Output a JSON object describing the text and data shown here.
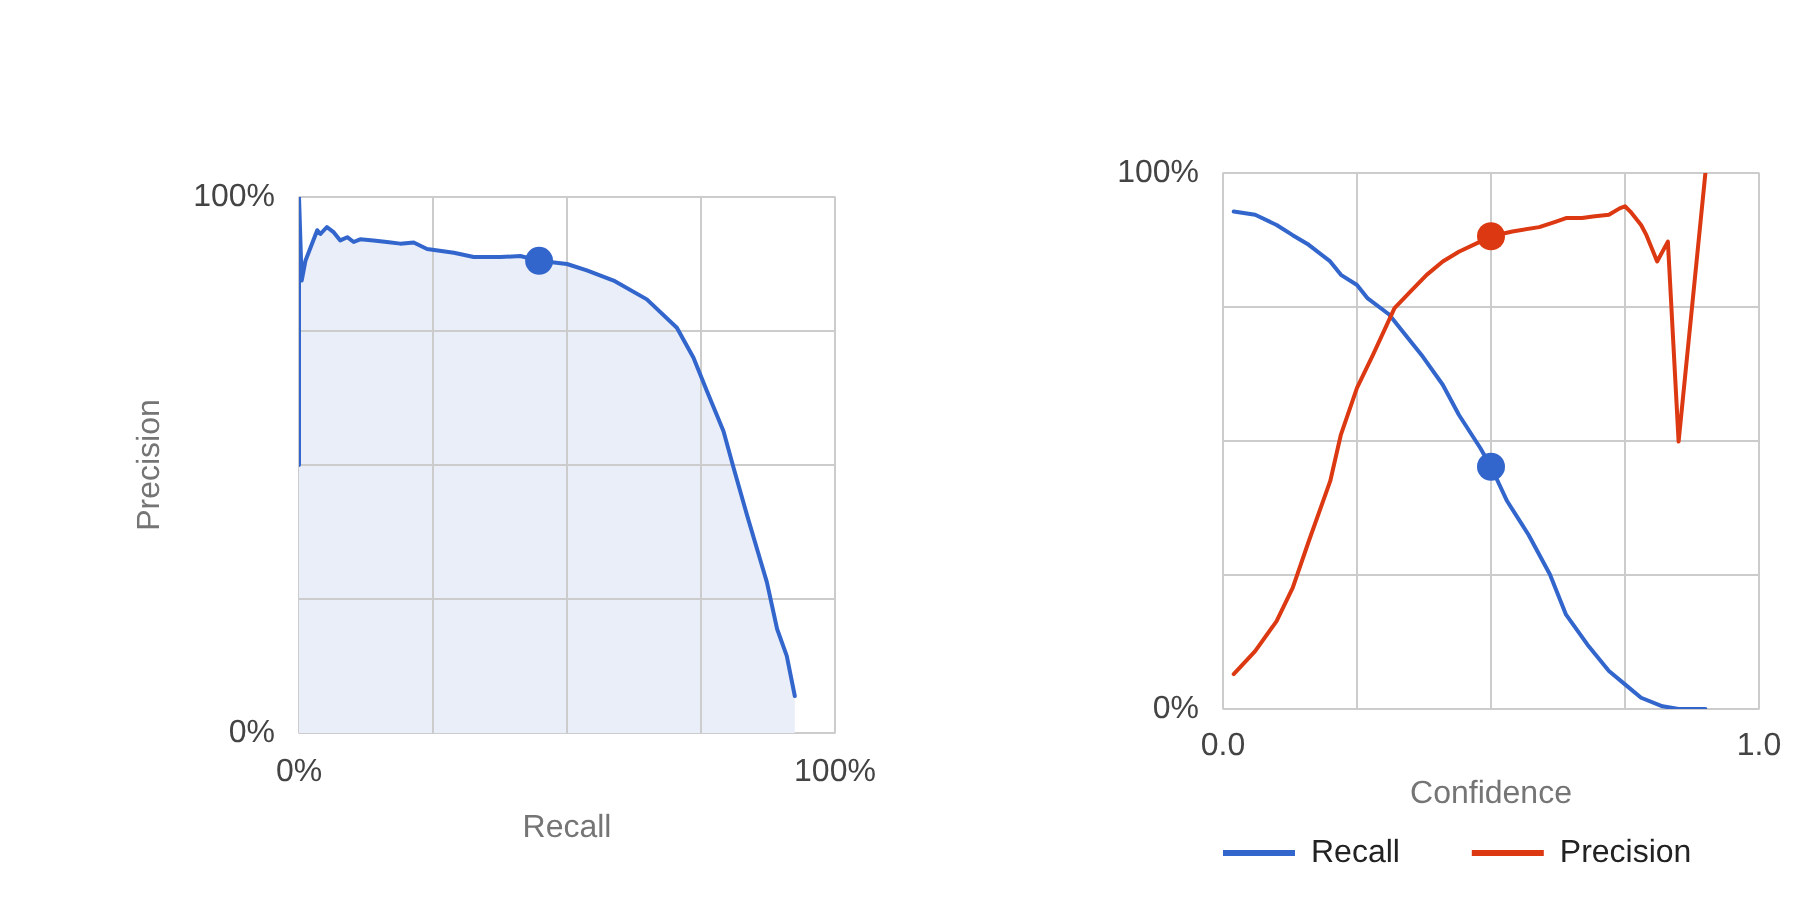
{
  "chart_data": [
    {
      "type": "area",
      "xlabel": "Recall",
      "ylabel": "Precision",
      "xlim": [
        0,
        100
      ],
      "ylim": [
        0,
        100
      ],
      "xticks": [
        {
          "value": 0,
          "label": "0%"
        },
        {
          "value": 25,
          "label": null
        },
        {
          "value": 50,
          "label": null
        },
        {
          "value": 75,
          "label": null
        },
        {
          "value": 100,
          "label": "100%"
        }
      ],
      "yticks": [
        {
          "value": 0,
          "label": "0%"
        },
        {
          "value": 25,
          "label": null
        },
        {
          "value": 50,
          "label": null
        },
        {
          "value": 75,
          "label": null
        },
        {
          "value": 100,
          "label": "100%"
        }
      ],
      "grid": true,
      "series": [
        {
          "color": "#3366cc",
          "x": [
            0,
            0,
            0.5,
            1.2,
            3.4,
            4.0,
            5.2,
            6.5,
            7.7,
            9.0,
            10.2,
            11.4,
            13.9,
            16.4,
            18.9,
            21.4,
            23.9,
            28.9,
            32.6,
            37.6,
            41.3,
            44.8,
            50.0,
            53.7,
            58.7,
            64.9,
            70.5,
            73.6,
            76.1,
            79.2,
            81.1,
            83.6,
            87.3,
            89.2,
            91.0,
            92.5
          ],
          "values": [
            50,
            100,
            84.4,
            88.1,
            93.8,
            93.1,
            94.4,
            93.4,
            91.9,
            92.5,
            91.6,
            92.1,
            91.9,
            91.6,
            91.3,
            91.5,
            90.3,
            89.6,
            88.8,
            88.8,
            89.0,
            88.1,
            87.5,
            86.3,
            84.4,
            80.9,
            75.6,
            70.0,
            63.8,
            56.3,
            49.4,
            40.6,
            28.1,
            19.4,
            14.4,
            6.9
          ]
        },
        {
          "type": "scatter",
          "marker": "circle",
          "color": "#3366cc",
          "x": [
            44.8
          ],
          "values": [
            88.1
          ]
        }
      ]
    },
    {
      "type": "line",
      "xlabel": "Confidence",
      "xlim": [
        0,
        1
      ],
      "ylim": [
        0,
        100
      ],
      "xticks": [
        {
          "value": 0,
          "label": "0.0"
        },
        {
          "value": 0.25,
          "label": null
        },
        {
          "value": 0.5,
          "label": null
        },
        {
          "value": 0.75,
          "label": null
        },
        {
          "value": 1,
          "label": "1.0"
        }
      ],
      "yticks": [
        {
          "value": 0,
          "label": "0%"
        },
        {
          "value": 25,
          "label": null
        },
        {
          "value": 50,
          "label": null
        },
        {
          "value": 75,
          "label": null
        },
        {
          "value": 100,
          "label": "100%"
        }
      ],
      "grid": true,
      "legend": "bottom",
      "series": [
        {
          "name": "Recall",
          "color": "#3366cc",
          "x": [
            0.02,
            0.06,
            0.1,
            0.13,
            0.16,
            0.2,
            0.22,
            0.25,
            0.27,
            0.31,
            0.33,
            0.37,
            0.41,
            0.44,
            0.48,
            0.5,
            0.53,
            0.57,
            0.61,
            0.64,
            0.68,
            0.72,
            0.75,
            0.78,
            0.82,
            0.85,
            0.9
          ],
          "values": [
            92.8,
            92.2,
            90.3,
            88.4,
            86.6,
            83.5,
            81.0,
            79.1,
            76.6,
            73.6,
            71.1,
            66.1,
            60.5,
            54.9,
            48.7,
            45.2,
            38.8,
            32.5,
            25.1,
            17.6,
            12.0,
            7.1,
            4.6,
            2.1,
            0.5,
            0,
            0
          ]
        },
        {
          "name": "Precision",
          "color": "#dc3912",
          "x": [
            0.02,
            0.06,
            0.1,
            0.13,
            0.16,
            0.2,
            0.22,
            0.25,
            0.28,
            0.32,
            0.35,
            0.38,
            0.41,
            0.44,
            0.48,
            0.5,
            0.54,
            0.59,
            0.62,
            0.64,
            0.67,
            0.69,
            0.72,
            0.74,
            0.75,
            0.76,
            0.78,
            0.79,
            0.81,
            0.83,
            0.85,
            0.9
          ],
          "values": [
            6.5,
            10.8,
            16.4,
            22.6,
            31.3,
            42.5,
            51.2,
            59.9,
            66.1,
            74.8,
            77.9,
            81.0,
            83.5,
            85.3,
            87.2,
            88.2,
            89.1,
            89.9,
            90.9,
            91.6,
            91.6,
            91.9,
            92.2,
            93.4,
            93.8,
            92.8,
            90.3,
            88.4,
            83.5,
            87.2,
            49.9,
            100
          ]
        },
        {
          "type": "scatter",
          "marker": "circle",
          "color": "#3366cc",
          "x": [
            0.5
          ],
          "values": [
            45.2
          ]
        },
        {
          "type": "scatter",
          "marker": "circle",
          "color": "#dc3912",
          "x": [
            0.5
          ],
          "values": [
            88.2
          ]
        }
      ]
    }
  ]
}
